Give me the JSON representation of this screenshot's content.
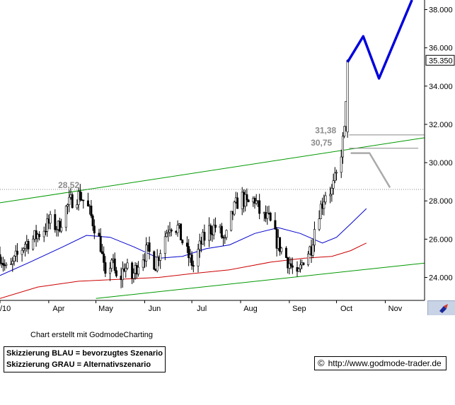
{
  "chart_data": {
    "type": "candlestick",
    "title": "",
    "xlabel": "",
    "ylabel": "",
    "ylim": [
      22.8,
      38.5
    ],
    "y_ticks": [
      "24.000",
      "26.000",
      "28.000",
      "30.000",
      "32.000",
      "34.000",
      "36.000",
      "38.000"
    ],
    "y_tick_values": [
      24,
      26,
      28,
      30,
      32,
      34,
      36,
      38
    ],
    "x_ticks": [
      "/10",
      "Apr",
      "May",
      "Jun",
      "Jul",
      "Aug",
      "Sep",
      "Oct",
      "Nov"
    ],
    "x_tick_dates": [
      "2010-03-01",
      "2010-04-01",
      "2010-05-01",
      "2010-06-01",
      "2010-07-01",
      "2010-08-01",
      "2010-09-01",
      "2010-10-01",
      "2010-11-01"
    ],
    "x_range": [
      "2010-03-01",
      "2010-11-26"
    ],
    "grid": false,
    "last_price": "35.350",
    "annotations": [
      {
        "text": "28,52",
        "date": "2010-04-20",
        "value": 28.52
      },
      {
        "text": "31,38",
        "date": "2010-10-04",
        "value": 31.38
      },
      {
        "text": "30,75",
        "date": "2010-10-04",
        "value": 30.75
      }
    ],
    "channel": {
      "color": "#009900",
      "upper": {
        "start": [
          "2010-03-01",
          27.9
        ],
        "end": [
          "2010-11-26",
          31.3
        ]
      },
      "lower": {
        "start": [
          "2010-05-01",
          22.9
        ],
        "end": [
          "2010-11-26",
          24.75
        ]
      }
    },
    "horizontal_lines": [
      {
        "value": 28.6,
        "from": "2010-03-01",
        "to": "2010-11-26",
        "color": "#888888",
        "style": "dotted"
      },
      {
        "value": 31.45,
        "from": "2010-10-09",
        "to": "2010-11-26",
        "color": "#888888",
        "style": "solid"
      },
      {
        "value": 30.75,
        "from": "2010-10-09",
        "to": "2010-11-22",
        "color": "#888888",
        "style": "solid"
      }
    ],
    "moving_averages": [
      {
        "color": "#0000cc",
        "points": [
          [
            "2010-03-01",
            24.1
          ],
          [
            "2010-03-20",
            24.8
          ],
          [
            "2010-04-10",
            25.6
          ],
          [
            "2010-04-25",
            26.2
          ],
          [
            "2010-05-10",
            26.1
          ],
          [
            "2010-05-25",
            25.6
          ],
          [
            "2010-06-10",
            25.0
          ],
          [
            "2010-06-25",
            25.1
          ],
          [
            "2010-07-10",
            25.5
          ],
          [
            "2010-07-25",
            25.7
          ],
          [
            "2010-08-10",
            26.3
          ],
          [
            "2010-08-25",
            26.6
          ],
          [
            "2010-09-08",
            26.3
          ],
          [
            "2010-09-22",
            25.8
          ],
          [
            "2010-10-01",
            26.1
          ],
          [
            "2010-10-10",
            26.8
          ],
          [
            "2010-10-20",
            27.6
          ]
        ]
      },
      {
        "color": "#cc0000",
        "points": [
          [
            "2010-03-01",
            22.9
          ],
          [
            "2010-03-25",
            23.5
          ],
          [
            "2010-04-20",
            23.8
          ],
          [
            "2010-05-15",
            23.9
          ],
          [
            "2010-06-10",
            24.0
          ],
          [
            "2010-07-01",
            24.2
          ],
          [
            "2010-07-25",
            24.4
          ],
          [
            "2010-08-20",
            24.8
          ],
          [
            "2010-09-10",
            25.0
          ],
          [
            "2010-09-28",
            25.1
          ],
          [
            "2010-10-10",
            25.4
          ],
          [
            "2010-10-20",
            25.8
          ]
        ]
      }
    ],
    "scenarios": [
      {
        "name": "BLAU",
        "color": "#0000dd",
        "points": [
          [
            "2010-10-08",
            35.25
          ],
          [
            "2010-10-18",
            36.6
          ],
          [
            "2010-10-28",
            34.4
          ],
          [
            "2010-11-18",
            38.5
          ]
        ]
      },
      {
        "name": "GRAU",
        "color": "#aaaaaa",
        "points": [
          [
            "2010-10-10",
            30.5
          ],
          [
            "2010-10-22",
            30.5
          ],
          [
            "2010-11-04",
            28.7
          ]
        ]
      }
    ],
    "price_path": [
      [
        "2010-03-01",
        25.2
      ],
      [
        "2010-03-06",
        24.2
      ],
      [
        "2010-03-11",
        25.0
      ],
      [
        "2010-03-17",
        25.8
      ],
      [
        "2010-03-22",
        26.0
      ],
      [
        "2010-03-27",
        26.4
      ],
      [
        "2010-04-02",
        26.9
      ],
      [
        "2010-04-07",
        26.6
      ],
      [
        "2010-04-12",
        27.6
      ],
      [
        "2010-04-17",
        28.2
      ],
      [
        "2010-04-21",
        28.3
      ],
      [
        "2010-04-26",
        27.6
      ],
      [
        "2010-05-01",
        26.5
      ],
      [
        "2010-05-04",
        25.7
      ],
      [
        "2010-05-07",
        23.8
      ],
      [
        "2010-05-11",
        25.0
      ],
      [
        "2010-05-15",
        23.5
      ],
      [
        "2010-05-19",
        24.6
      ],
      [
        "2010-05-24",
        24.0
      ],
      [
        "2010-05-29",
        25.0
      ],
      [
        "2010-06-03",
        25.4
      ],
      [
        "2010-06-08",
        24.7
      ],
      [
        "2010-06-13",
        26.0
      ],
      [
        "2010-06-17",
        26.8
      ],
      [
        "2010-06-22",
        26.6
      ],
      [
        "2010-06-27",
        25.4
      ],
      [
        "2010-07-02",
        24.6
      ],
      [
        "2010-07-07",
        25.8
      ],
      [
        "2010-07-12",
        26.5
      ],
      [
        "2010-07-17",
        26.7
      ],
      [
        "2010-07-22",
        25.8
      ],
      [
        "2010-07-27",
        27.4
      ],
      [
        "2010-08-01",
        28.3
      ],
      [
        "2010-08-05",
        27.8
      ],
      [
        "2010-08-10",
        28.1
      ],
      [
        "2010-08-14",
        27.2
      ],
      [
        "2010-08-19",
        27.0
      ],
      [
        "2010-08-24",
        25.9
      ],
      [
        "2010-08-29",
        25.2
      ],
      [
        "2010-09-02",
        24.6
      ],
      [
        "2010-09-06",
        23.9
      ],
      [
        "2010-09-10",
        25.0
      ],
      [
        "2010-09-15",
        25.6
      ],
      [
        "2010-09-18",
        27.1
      ],
      [
        "2010-09-22",
        27.9
      ],
      [
        "2010-09-25",
        28.7
      ],
      [
        "2010-09-28",
        28.5
      ],
      [
        "2010-10-01",
        29.3
      ],
      [
        "2010-10-04",
        30.6
      ],
      [
        "2010-10-06",
        31.6
      ],
      [
        "2010-10-08",
        35.35
      ]
    ]
  },
  "footer": {
    "credit": "Chart erstellt mit GodmodeCharting",
    "legend_line1": "Skizzierung BLAU = bevorzugtes Szenario",
    "legend_line2": "Skizzierung GRAU = Alternativszenario",
    "copyright_symbol": "©",
    "url": "http://www.godmode-trader.de"
  }
}
